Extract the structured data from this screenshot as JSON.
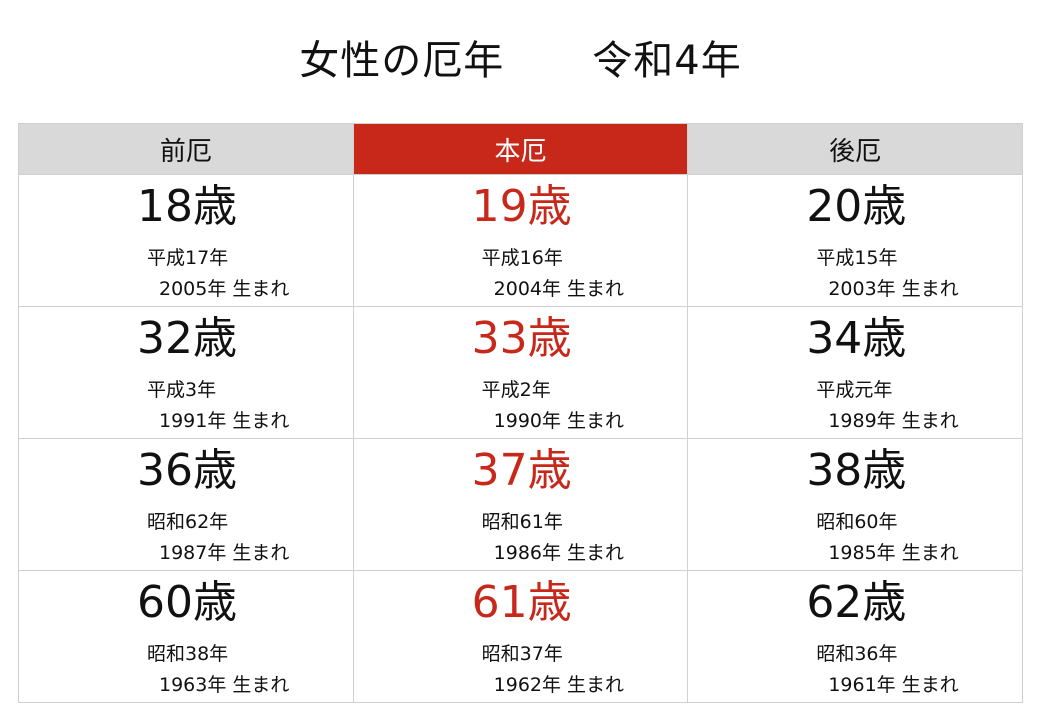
{
  "title": {
    "left": "女性の厄年",
    "right": "令和4年"
  },
  "headers": [
    "前厄",
    "本厄",
    "後厄"
  ],
  "colors": {
    "accent": "#c8281a",
    "header_bg": "#d9d9d9"
  },
  "rows": [
    [
      {
        "age": "18歳",
        "era": "平成17年",
        "born": "2005年 生まれ"
      },
      {
        "age": "19歳",
        "era": "平成16年",
        "born": "2004年 生まれ"
      },
      {
        "age": "20歳",
        "era": "平成15年",
        "born": "2003年 生まれ"
      }
    ],
    [
      {
        "age": "32歳",
        "era": "平成3年",
        "born": "1991年 生まれ"
      },
      {
        "age": "33歳",
        "era": "平成2年",
        "born": "1990年 生まれ"
      },
      {
        "age": "34歳",
        "era": "平成元年",
        "born": "1989年 生まれ"
      }
    ],
    [
      {
        "age": "36歳",
        "era": "昭和62年",
        "born": "1987年 生まれ"
      },
      {
        "age": "37歳",
        "era": "昭和61年",
        "born": "1986年 生まれ"
      },
      {
        "age": "38歳",
        "era": "昭和60年",
        "born": "1985年 生まれ"
      }
    ],
    [
      {
        "age": "60歳",
        "era": "昭和38年",
        "born": "1963年 生まれ"
      },
      {
        "age": "61歳",
        "era": "昭和37年",
        "born": "1962年 生まれ"
      },
      {
        "age": "62歳",
        "era": "昭和36年",
        "born": "1961年 生まれ"
      }
    ]
  ]
}
